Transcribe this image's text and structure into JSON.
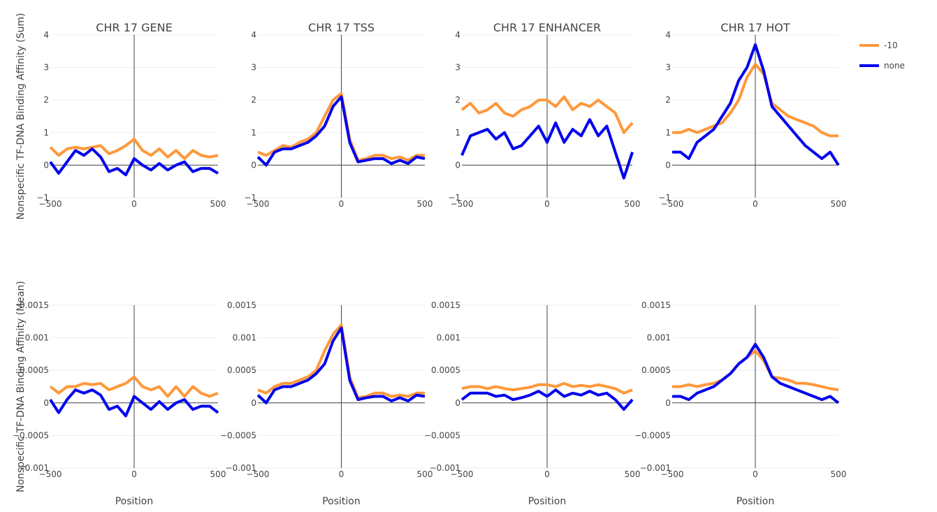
{
  "chart_data": {
    "type": "line",
    "legend": {
      "placement": "top-right",
      "entries": [
        {
          "name": "-10",
          "color": "#ff983a"
        },
        {
          "name": "none",
          "color": "#0000ee"
        }
      ]
    },
    "rows": [
      {
        "ylabel": "Nonspecific TF-DNA Binding Affinity (Sum)",
        "ylim": [
          -1,
          4
        ],
        "yticks": [
          -1,
          0,
          1,
          2,
          3,
          4
        ],
        "ytick_labels": [
          "−1",
          "0",
          "1",
          "2",
          "3",
          "4"
        ],
        "xlabel": ""
      },
      {
        "ylabel": "Nonspecific TF-DNA Binding Affinity (Mean)",
        "ylim": [
          -0.001,
          0.0015
        ],
        "yticks": [
          -0.001,
          -0.0005,
          0,
          0.0005,
          0.001,
          0.0015
        ],
        "ytick_labels": [
          "−0.001",
          "−0.0005",
          "0",
          "0.0005",
          "0.001",
          "0.0015"
        ],
        "xlabel": "Position"
      }
    ],
    "columns": [
      "CHR 17 GENE",
      "CHR 17 TSS",
      "CHR 17 ENHANCER",
      "CHR 17 HOT"
    ],
    "xlim": [
      -500,
      500
    ],
    "xticks": [
      -500,
      0,
      500
    ],
    "xtick_labels": [
      "−500",
      "0",
      "500"
    ],
    "grid": true,
    "x": [
      -500,
      -450,
      -400,
      -350,
      -300,
      -250,
      -200,
      -150,
      -100,
      -50,
      0,
      50,
      100,
      150,
      200,
      250,
      300,
      350,
      400,
      450,
      500
    ],
    "panels": [
      {
        "row": 0,
        "col": 0,
        "series": [
          {
            "name": "-10",
            "values": [
              0.55,
              0.3,
              0.5,
              0.55,
              0.5,
              0.55,
              0.6,
              0.35,
              0.45,
              0.6,
              0.8,
              0.45,
              0.3,
              0.5,
              0.25,
              0.45,
              0.2,
              0.45,
              0.3,
              0.25,
              0.3
            ]
          },
          {
            "name": "none",
            "values": [
              0.1,
              -0.25,
              0.1,
              0.45,
              0.3,
              0.5,
              0.25,
              -0.2,
              -0.1,
              -0.3,
              0.2,
              0.0,
              -0.15,
              0.05,
              -0.15,
              0.0,
              0.1,
              -0.2,
              -0.1,
              -0.1,
              -0.25
            ]
          }
        ]
      },
      {
        "row": 0,
        "col": 1,
        "series": [
          {
            "name": "-10",
            "values": [
              0.4,
              0.3,
              0.45,
              0.6,
              0.55,
              0.7,
              0.8,
              1.0,
              1.5,
              2.0,
              2.2,
              0.8,
              0.15,
              0.2,
              0.3,
              0.3,
              0.2,
              0.25,
              0.15,
              0.3,
              0.3
            ]
          },
          {
            "name": "none",
            "values": [
              0.25,
              0.0,
              0.4,
              0.5,
              0.5,
              0.6,
              0.7,
              0.9,
              1.2,
              1.8,
              2.1,
              0.7,
              0.1,
              0.15,
              0.2,
              0.2,
              0.05,
              0.15,
              0.05,
              0.25,
              0.2
            ]
          }
        ]
      },
      {
        "row": 0,
        "col": 2,
        "series": [
          {
            "name": "-10",
            "values": [
              1.7,
              1.9,
              1.6,
              1.7,
              1.9,
              1.6,
              1.5,
              1.7,
              1.8,
              2.0,
              2.0,
              1.8,
              2.1,
              1.7,
              1.9,
              1.8,
              2.0,
              1.8,
              1.6,
              1.0,
              1.3
            ]
          },
          {
            "name": "none",
            "values": [
              0.3,
              0.9,
              1.0,
              1.1,
              0.8,
              1.0,
              0.5,
              0.6,
              0.9,
              1.2,
              0.7,
              1.3,
              0.7,
              1.1,
              0.9,
              1.4,
              0.9,
              1.2,
              0.4,
              -0.4,
              0.4
            ]
          }
        ]
      },
      {
        "row": 0,
        "col": 3,
        "series": [
          {
            "name": "-10",
            "values": [
              1.0,
              1.0,
              1.1,
              1.0,
              1.1,
              1.2,
              1.3,
              1.6,
              2.0,
              2.7,
              3.1,
              2.8,
              1.9,
              1.7,
              1.5,
              1.4,
              1.3,
              1.2,
              1.0,
              0.9,
              0.9
            ]
          },
          {
            "name": "none",
            "values": [
              0.4,
              0.4,
              0.2,
              0.7,
              0.9,
              1.1,
              1.5,
              1.9,
              2.6,
              3.0,
              3.7,
              2.9,
              1.8,
              1.5,
              1.2,
              0.9,
              0.6,
              0.4,
              0.2,
              0.4,
              0.0
            ]
          }
        ]
      },
      {
        "row": 1,
        "col": 0,
        "series": [
          {
            "name": "-10",
            "values": [
              0.00025,
              0.00015,
              0.00025,
              0.00025,
              0.0003,
              0.00028,
              0.0003,
              0.0002,
              0.00025,
              0.0003,
              0.0004,
              0.00025,
              0.0002,
              0.00025,
              0.0001,
              0.00025,
              0.0001,
              0.00025,
              0.00015,
              0.0001,
              0.00015
            ]
          },
          {
            "name": "none",
            "values": [
              5e-05,
              -0.00015,
              5e-05,
              0.0002,
              0.00015,
              0.0002,
              0.00012,
              -0.0001,
              -5e-05,
              -0.0002,
              0.0001,
              0.0,
              -0.0001,
              2e-05,
              -0.0001,
              0.0,
              5e-05,
              -0.0001,
              -5e-05,
              -5e-05,
              -0.00015
            ]
          }
        ]
      },
      {
        "row": 1,
        "col": 1,
        "series": [
          {
            "name": "-10",
            "values": [
              0.0002,
              0.00015,
              0.00025,
              0.0003,
              0.0003,
              0.00035,
              0.0004,
              0.0005,
              0.0008,
              0.00105,
              0.0012,
              0.0004,
              8e-05,
              0.0001,
              0.00015,
              0.00015,
              0.0001,
              0.00012,
              0.0001,
              0.00015,
              0.00015
            ]
          },
          {
            "name": "none",
            "values": [
              0.00012,
              0.0,
              0.0002,
              0.00025,
              0.00025,
              0.0003,
              0.00035,
              0.00045,
              0.0006,
              0.00095,
              0.00115,
              0.00035,
              5e-05,
              8e-05,
              0.0001,
              0.0001,
              3e-05,
              8e-05,
              3e-05,
              0.00012,
              0.0001
            ]
          }
        ]
      },
      {
        "row": 1,
        "col": 2,
        "series": [
          {
            "name": "-10",
            "values": [
              0.00022,
              0.00025,
              0.00025,
              0.00022,
              0.00025,
              0.00022,
              0.0002,
              0.00022,
              0.00024,
              0.00028,
              0.00028,
              0.00025,
              0.0003,
              0.00025,
              0.00027,
              0.00025,
              0.00028,
              0.00025,
              0.00022,
              0.00015,
              0.0002
            ]
          },
          {
            "name": "none",
            "values": [
              5e-05,
              0.00015,
              0.00015,
              0.00015,
              0.0001,
              0.00012,
              5e-05,
              8e-05,
              0.00012,
              0.00018,
              0.0001,
              0.0002,
              0.0001,
              0.00015,
              0.00012,
              0.00018,
              0.00012,
              0.00015,
              5e-05,
              -0.0001,
              5e-05
            ]
          }
        ]
      },
      {
        "row": 1,
        "col": 3,
        "series": [
          {
            "name": "-10",
            "values": [
              0.00025,
              0.00025,
              0.00028,
              0.00025,
              0.00028,
              0.0003,
              0.00035,
              0.00045,
              0.0006,
              0.0007,
              0.0008,
              0.00065,
              0.0004,
              0.00038,
              0.00035,
              0.0003,
              0.0003,
              0.00028,
              0.00025,
              0.00022,
              0.0002
            ]
          },
          {
            "name": "none",
            "values": [
              0.0001,
              0.0001,
              5e-05,
              0.00015,
              0.0002,
              0.00025,
              0.00035,
              0.00045,
              0.0006,
              0.0007,
              0.0009,
              0.0007,
              0.0004,
              0.0003,
              0.00025,
              0.0002,
              0.00015,
              0.0001,
              5e-05,
              0.0001,
              0.0
            ]
          }
        ]
      }
    ]
  }
}
